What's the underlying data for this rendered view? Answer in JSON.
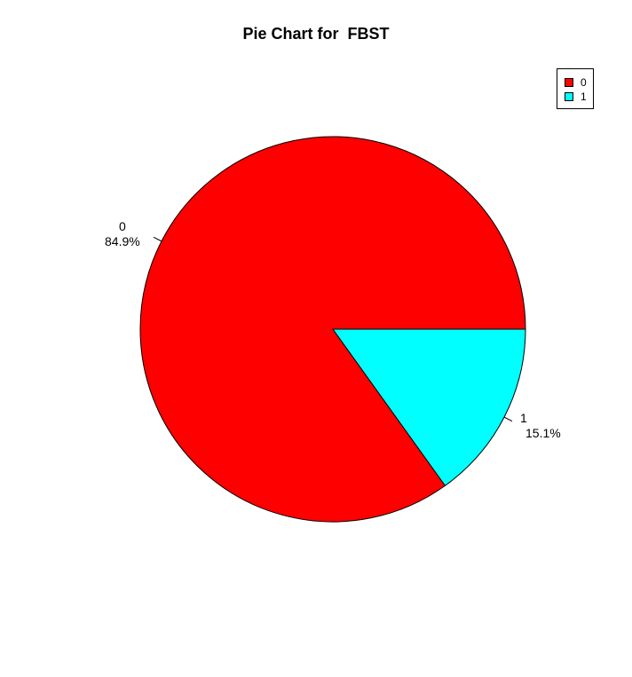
{
  "chart_data": {
    "type": "pie",
    "title": "Pie Chart for  FBST",
    "slices": [
      {
        "label": "0",
        "percent_label": "84.9%",
        "value": 84.9,
        "color": "#ff0000"
      },
      {
        "label": "1",
        "percent_label": "15.1%",
        "value": 15.1,
        "color": "#00ffff"
      }
    ],
    "legend": {
      "position": "top-right",
      "entries": [
        {
          "label": "0",
          "color": "#ff0000"
        },
        {
          "label": "1",
          "color": "#00ffff"
        }
      ]
    }
  }
}
